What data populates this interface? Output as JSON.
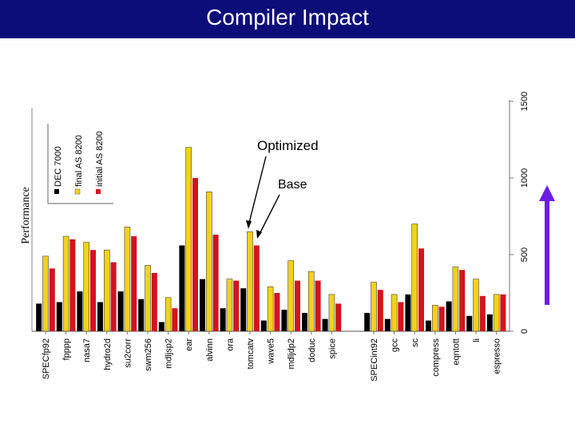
{
  "slide": {
    "title": "Compiler Impact",
    "y_label": "Performance"
  },
  "colors": {
    "title_bar": "#0d0d7a",
    "dec": "#000000",
    "final": "#f2d21a",
    "initial": "#d2141e",
    "arrow": "#6a1ee6"
  },
  "annotations": {
    "optimized": "Optimized",
    "base": "Base"
  },
  "chart_data": {
    "type": "bar",
    "title": "",
    "xlabel": "",
    "ylabel": "Performance",
    "ylim": [
      0,
      1500
    ],
    "y_ticks": [
      "0",
      "500",
      "1000",
      "1500"
    ],
    "grid": false,
    "legend_position": "top-left (inset)",
    "categories": [
      "SPECfp92",
      "fpppp",
      "nasa7",
      "hydro2d",
      "su2corr",
      "swm256",
      "mdljsp2",
      "ear",
      "alvinn",
      "ora",
      "tomcatv",
      "wave5",
      "mdljdp2",
      "doduc",
      "spice",
      "SPECint92",
      "gcc",
      "sc",
      "compress",
      "eqntott",
      "li",
      "espresso"
    ],
    "series": [
      {
        "name": "DEC 7000",
        "values": [
          180,
          190,
          260,
          190,
          260,
          210,
          60,
          560,
          340,
          150,
          280,
          70,
          140,
          120,
          80,
          120,
          80,
          240,
          70,
          195,
          100,
          110
        ]
      },
      {
        "name": "final AS 8200",
        "values": [
          490,
          620,
          580,
          530,
          680,
          430,
          220,
          1200,
          910,
          340,
          650,
          290,
          460,
          390,
          240,
          320,
          240,
          700,
          170,
          420,
          340,
          240
        ]
      },
      {
        "name": "initial AS 8200",
        "values": [
          410,
          600,
          530,
          450,
          620,
          380,
          150,
          1000,
          630,
          330,
          560,
          250,
          330,
          330,
          180,
          270,
          190,
          540,
          160,
          400,
          230,
          240
        ]
      }
    ]
  }
}
